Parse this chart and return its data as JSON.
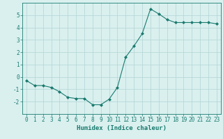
{
  "x": [
    0,
    1,
    2,
    3,
    4,
    5,
    6,
    7,
    8,
    9,
    10,
    11,
    12,
    13,
    14,
    15,
    16,
    17,
    18,
    19,
    20,
    21,
    22,
    23
  ],
  "y": [
    -0.3,
    -0.7,
    -0.7,
    -0.85,
    -1.2,
    -1.65,
    -1.75,
    -1.75,
    -2.25,
    -2.25,
    -1.8,
    -0.85,
    1.6,
    2.5,
    3.5,
    5.5,
    5.1,
    4.65,
    4.4,
    4.4,
    4.4,
    4.4,
    4.4,
    4.3
  ],
  "line_color": "#1a7a6e",
  "marker": "D",
  "marker_size": 2,
  "bg_color": "#d9f0ef",
  "grid_color": "#b8d8d8",
  "xlabel": "Humidex (Indice chaleur)",
  "ylabel": "",
  "ylim": [
    -3,
    6
  ],
  "xlim": [
    -0.5,
    23.5
  ],
  "yticks": [
    -2,
    -1,
    0,
    1,
    2,
    3,
    4,
    5
  ],
  "xticks": [
    0,
    1,
    2,
    3,
    4,
    5,
    6,
    7,
    8,
    9,
    10,
    11,
    12,
    13,
    14,
    15,
    16,
    17,
    18,
    19,
    20,
    21,
    22,
    23
  ],
  "tick_fontsize": 5.5,
  "xlabel_fontsize": 6.5
}
